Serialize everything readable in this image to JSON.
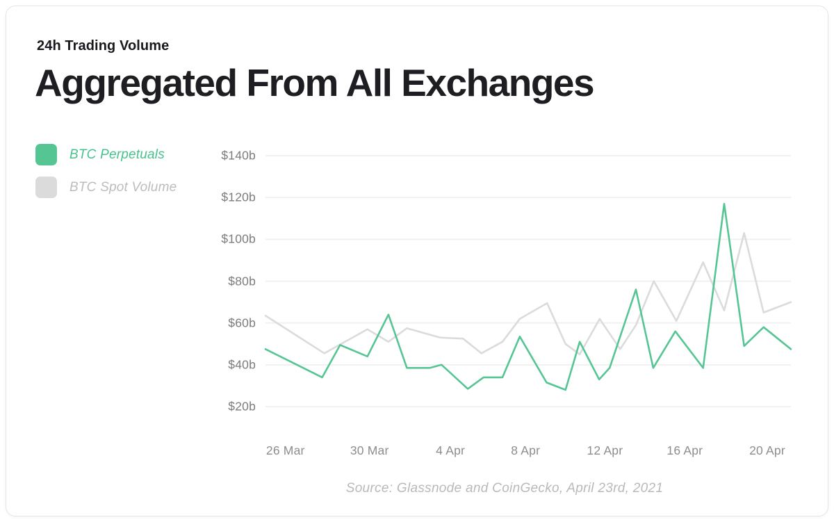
{
  "header": {
    "eyebrow": "24h Trading Volume",
    "title": "Aggregated From All Exchanges"
  },
  "legend": {
    "items": [
      {
        "label": "BTC Perpetuals",
        "swatch_color": "#55c594",
        "text_color": "#47c18d"
      },
      {
        "label": "BTC Spot Volume",
        "swatch_color": "#dbdbdb",
        "text_color": "#bcbcbc"
      }
    ]
  },
  "source_note": "Source: Glassnode and CoinGecko, April 23rd, 2021",
  "chart_data": {
    "type": "line",
    "title": "24h Trading Volume — Aggregated From All Exchanges",
    "unit": "billions USD (24h trading volume)",
    "ylim": [
      20,
      140
    ],
    "grid": "horizontal",
    "legend_position": "left",
    "y_ticks": [
      {
        "value": 140,
        "label": "$140b"
      },
      {
        "value": 120,
        "label": "$120b"
      },
      {
        "value": 100,
        "label": "$100b"
      },
      {
        "value": 80,
        "label": "$80b"
      },
      {
        "value": 60,
        "label": "$60b"
      },
      {
        "value": 40,
        "label": "$40b"
      },
      {
        "value": 20,
        "label": "$20b"
      }
    ],
    "x_ticks": [
      {
        "label": "26 Mar",
        "pct": 3.8
      },
      {
        "label": "30 Mar",
        "pct": 19.8
      },
      {
        "label": "4 Apr",
        "pct": 35.2
      },
      {
        "label": "8 Apr",
        "pct": 49.5
      },
      {
        "label": "12 Apr",
        "pct": 64.6
      },
      {
        "label": "16 Apr",
        "pct": 79.8
      },
      {
        "label": "20 Apr",
        "pct": 95.5
      }
    ],
    "series": [
      {
        "name": "BTC Perpetuals",
        "color": "#55c594",
        "points": [
          [
            0,
            47.5
          ],
          [
            10.8,
            34
          ],
          [
            14.2,
            49.5
          ],
          [
            19.4,
            44
          ],
          [
            23.4,
            64
          ],
          [
            26.9,
            38.5
          ],
          [
            31.3,
            38.5
          ],
          [
            33.5,
            40
          ],
          [
            38.5,
            28.5
          ],
          [
            41.5,
            34
          ],
          [
            45.1,
            34
          ],
          [
            48.4,
            53.5
          ],
          [
            53.5,
            31.5
          ],
          [
            57.1,
            28
          ],
          [
            59.8,
            51
          ],
          [
            63.5,
            33
          ],
          [
            65.5,
            38.5
          ],
          [
            70.5,
            76
          ],
          [
            73.8,
            38.5
          ],
          [
            78,
            56
          ],
          [
            83.3,
            38.5
          ],
          [
            87.3,
            117
          ],
          [
            91.1,
            49
          ],
          [
            94.8,
            58
          ],
          [
            100,
            47.5
          ]
        ]
      },
      {
        "name": "BTC Spot Volume",
        "color": "#dbdbdb",
        "points": [
          [
            0,
            63.5
          ],
          [
            11.2,
            45.5
          ],
          [
            19.4,
            57
          ],
          [
            23.4,
            51
          ],
          [
            26.9,
            57.5
          ],
          [
            33.3,
            53
          ],
          [
            37.6,
            52.5
          ],
          [
            41.1,
            45.5
          ],
          [
            45.1,
            51
          ],
          [
            48.4,
            62
          ],
          [
            53.6,
            69.5
          ],
          [
            57.1,
            50
          ],
          [
            59.8,
            45
          ],
          [
            63.6,
            62
          ],
          [
            67.5,
            47.5
          ],
          [
            70.5,
            59
          ],
          [
            73.9,
            80
          ],
          [
            78.2,
            61
          ],
          [
            83.3,
            89
          ],
          [
            87.3,
            66
          ],
          [
            91.1,
            103
          ],
          [
            94.8,
            65
          ],
          [
            100,
            70
          ]
        ]
      }
    ]
  }
}
